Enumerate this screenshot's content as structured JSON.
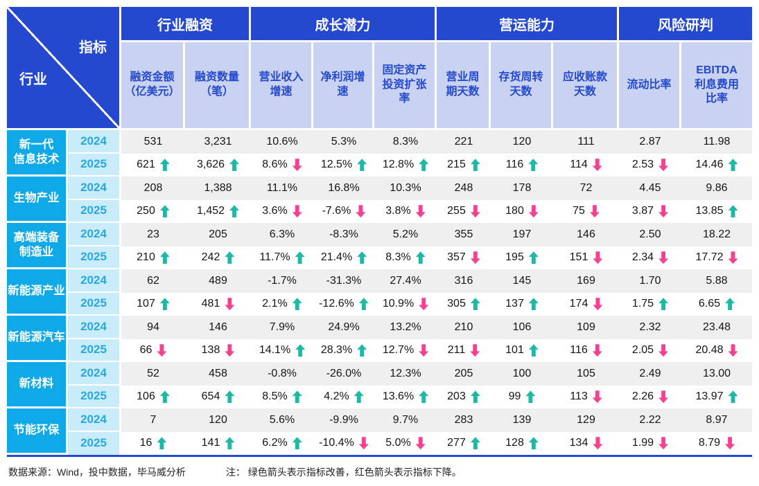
{
  "chart_data": {
    "type": "table",
    "corner": {
      "indicator": "指标",
      "industry": "行业"
    },
    "column_groups": [
      {
        "label": "行业融资",
        "span": 2
      },
      {
        "label": "成长潜力",
        "span": 3
      },
      {
        "label": "营运能力",
        "span": 3
      },
      {
        "label": "风险研判",
        "span": 2
      }
    ],
    "columns": [
      "融资金额\n（亿美元）",
      "融资数量\n（笔）",
      "营业收入\n增速",
      "净利润增\n速",
      "固定资产\n投资扩张\n率",
      "营业周\n期天数",
      "存货周转\n天数",
      "应收账款\n天数",
      "流动比率",
      "EBITDA\n利息费用\n比率"
    ],
    "industries": [
      {
        "name": "新一代\n信息技术",
        "rows": [
          {
            "year": "2024",
            "cells": [
              {
                "v": "531"
              },
              {
                "v": "3,231"
              },
              {
                "v": "10.6%"
              },
              {
                "v": "5.3%"
              },
              {
                "v": "8.3%"
              },
              {
                "v": "221"
              },
              {
                "v": "120"
              },
              {
                "v": "111"
              },
              {
                "v": "2.87"
              },
              {
                "v": "11.98"
              }
            ]
          },
          {
            "year": "2025",
            "cells": [
              {
                "v": "621",
                "a": "up"
              },
              {
                "v": "3,626",
                "a": "up"
              },
              {
                "v": "8.6%",
                "a": "down"
              },
              {
                "v": "12.5%",
                "a": "up"
              },
              {
                "v": "12.8%",
                "a": "up"
              },
              {
                "v": "215",
                "a": "up"
              },
              {
                "v": "116",
                "a": "up"
              },
              {
                "v": "114",
                "a": "down"
              },
              {
                "v": "2.53",
                "a": "down"
              },
              {
                "v": "14.46",
                "a": "up"
              }
            ]
          }
        ]
      },
      {
        "name": "生物产业",
        "rows": [
          {
            "year": "2024",
            "cells": [
              {
                "v": "208"
              },
              {
                "v": "1,388"
              },
              {
                "v": "11.1%"
              },
              {
                "v": "16.8%"
              },
              {
                "v": "10.3%"
              },
              {
                "v": "248"
              },
              {
                "v": "178"
              },
              {
                "v": "72"
              },
              {
                "v": "4.45"
              },
              {
                "v": "9.86"
              }
            ]
          },
          {
            "year": "2025",
            "cells": [
              {
                "v": "250",
                "a": "up"
              },
              {
                "v": "1,452",
                "a": "up"
              },
              {
                "v": "3.6%",
                "a": "down"
              },
              {
                "v": "-7.6%",
                "a": "down"
              },
              {
                "v": "3.8%",
                "a": "down"
              },
              {
                "v": "255",
                "a": "down"
              },
              {
                "v": "180",
                "a": "down"
              },
              {
                "v": "75",
                "a": "down"
              },
              {
                "v": "3.87",
                "a": "down"
              },
              {
                "v": "13.85",
                "a": "up"
              }
            ]
          }
        ]
      },
      {
        "name": "高端装备\n制造业",
        "rows": [
          {
            "year": "2024",
            "cells": [
              {
                "v": "23"
              },
              {
                "v": "205"
              },
              {
                "v": "6.3%"
              },
              {
                "v": "-8.3%"
              },
              {
                "v": "5.2%"
              },
              {
                "v": "355"
              },
              {
                "v": "197"
              },
              {
                "v": "146"
              },
              {
                "v": "2.50"
              },
              {
                "v": "18.22"
              }
            ]
          },
          {
            "year": "2025",
            "cells": [
              {
                "v": "210",
                "a": "up"
              },
              {
                "v": "242",
                "a": "up"
              },
              {
                "v": "11.7%",
                "a": "up"
              },
              {
                "v": "21.4%",
                "a": "up"
              },
              {
                "v": "8.3%",
                "a": "up"
              },
              {
                "v": "357",
                "a": "down"
              },
              {
                "v": "195",
                "a": "up"
              },
              {
                "v": "151",
                "a": "down"
              },
              {
                "v": "2.34",
                "a": "down"
              },
              {
                "v": "17.72",
                "a": "down"
              }
            ]
          }
        ]
      },
      {
        "name": "新能源产业",
        "rows": [
          {
            "year": "2024",
            "cells": [
              {
                "v": "62"
              },
              {
                "v": "489"
              },
              {
                "v": "-1.7%"
              },
              {
                "v": "-31.3%"
              },
              {
                "v": "27.4%"
              },
              {
                "v": "316"
              },
              {
                "v": "145"
              },
              {
                "v": "169"
              },
              {
                "v": "1.70"
              },
              {
                "v": "5.88"
              }
            ]
          },
          {
            "year": "2025",
            "cells": [
              {
                "v": "107",
                "a": "up"
              },
              {
                "v": "481",
                "a": "down"
              },
              {
                "v": "2.1%",
                "a": "up"
              },
              {
                "v": "-12.6%",
                "a": "up"
              },
              {
                "v": "10.9%",
                "a": "down"
              },
              {
                "v": "305",
                "a": "up"
              },
              {
                "v": "137",
                "a": "up"
              },
              {
                "v": "174",
                "a": "down"
              },
              {
                "v": "1.75",
                "a": "up"
              },
              {
                "v": "6.65",
                "a": "up"
              }
            ]
          }
        ]
      },
      {
        "name": "新能源汽车",
        "rows": [
          {
            "year": "2024",
            "cells": [
              {
                "v": "94"
              },
              {
                "v": "146"
              },
              {
                "v": "7.9%"
              },
              {
                "v": "24.9%"
              },
              {
                "v": "13.2%"
              },
              {
                "v": "210"
              },
              {
                "v": "106"
              },
              {
                "v": "109"
              },
              {
                "v": "2.32"
              },
              {
                "v": "23.48"
              }
            ]
          },
          {
            "year": "2025",
            "cells": [
              {
                "v": "66",
                "a": "down"
              },
              {
                "v": "138",
                "a": "down"
              },
              {
                "v": "14.1%",
                "a": "up"
              },
              {
                "v": "28.3%",
                "a": "up"
              },
              {
                "v": "12.7%",
                "a": "down"
              },
              {
                "v": "211",
                "a": "down"
              },
              {
                "v": "101",
                "a": "up"
              },
              {
                "v": "116",
                "a": "down"
              },
              {
                "v": "2.05",
                "a": "down"
              },
              {
                "v": "20.48",
                "a": "down"
              }
            ]
          }
        ]
      },
      {
        "name": "新材料",
        "rows": [
          {
            "year": "2024",
            "cells": [
              {
                "v": "52"
              },
              {
                "v": "458"
              },
              {
                "v": "-0.8%"
              },
              {
                "v": "-26.0%"
              },
              {
                "v": "12.3%"
              },
              {
                "v": "205"
              },
              {
                "v": "100"
              },
              {
                "v": "105"
              },
              {
                "v": "2.49"
              },
              {
                "v": "13.00"
              }
            ]
          },
          {
            "year": "2025",
            "cells": [
              {
                "v": "106",
                "a": "up"
              },
              {
                "v": "654",
                "a": "up"
              },
              {
                "v": "8.5%",
                "a": "up"
              },
              {
                "v": "4.2%",
                "a": "up"
              },
              {
                "v": "13.6%",
                "a": "up"
              },
              {
                "v": "203",
                "a": "up"
              },
              {
                "v": "99",
                "a": "up"
              },
              {
                "v": "113",
                "a": "down"
              },
              {
                "v": "2.26",
                "a": "down"
              },
              {
                "v": "13.97",
                "a": "up"
              }
            ]
          }
        ]
      },
      {
        "name": "节能环保",
        "rows": [
          {
            "year": "2024",
            "cells": [
              {
                "v": "7"
              },
              {
                "v": "120"
              },
              {
                "v": "5.6%"
              },
              {
                "v": "-9.9%"
              },
              {
                "v": "9.7%"
              },
              {
                "v": "283"
              },
              {
                "v": "139"
              },
              {
                "v": "129"
              },
              {
                "v": "2.22"
              },
              {
                "v": "8.97"
              }
            ]
          },
          {
            "year": "2025",
            "cells": [
              {
                "v": "16",
                "a": "up"
              },
              {
                "v": "141",
                "a": "up"
              },
              {
                "v": "6.2%",
                "a": "up"
              },
              {
                "v": "-10.4%",
                "a": "down"
              },
              {
                "v": "5.0%",
                "a": "down"
              },
              {
                "v": "277",
                "a": "up"
              },
              {
                "v": "128",
                "a": "up"
              },
              {
                "v": "134",
                "a": "down"
              },
              {
                "v": "1.99",
                "a": "down"
              },
              {
                "v": "8.79",
                "a": "down"
              }
            ]
          }
        ]
      }
    ]
  },
  "colors": {
    "header_blue": "#2448CE",
    "subheader_bg": "#C9D3F1",
    "industry_bg": "#0EA9E6",
    "year_bg": "#C9ECFB",
    "year_text": "#29A8E0",
    "row_2024_bg": "#EFEFEF",
    "arrow_up": "#1CBAA6",
    "arrow_down": "#F5418F"
  },
  "footer": {
    "source": "数据来源：Wind，投中数据，毕马威分析",
    "note": "注： 绿色箭头表示指标改善，红色箭头表示指标下降。"
  }
}
